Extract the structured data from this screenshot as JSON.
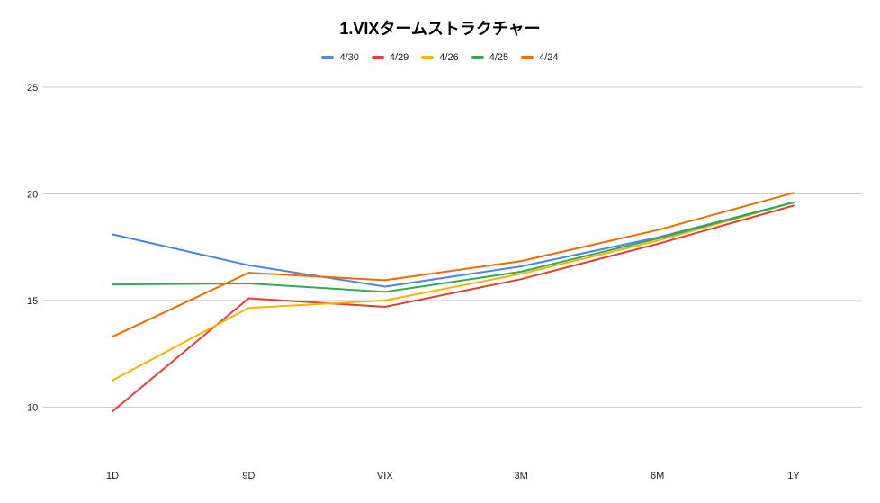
{
  "chart_data": {
    "type": "line",
    "title": "1.VIXタームストラクチャー",
    "categories": [
      "1D",
      "9D",
      "VIX",
      "3M",
      "6M",
      "1Y"
    ],
    "ylim": [
      8.2,
      25
    ],
    "yticks": [
      10,
      15,
      20,
      25
    ],
    "grid": true,
    "legend_position": "top",
    "series": [
      {
        "name": "4/30",
        "color": "#4a86e8",
        "values": [
          18.1,
          16.65,
          15.65,
          16.6,
          17.95,
          19.6
        ]
      },
      {
        "name": "4/29",
        "color": "#db4437",
        "values": [
          9.8,
          15.1,
          14.7,
          16.0,
          17.65,
          19.45
        ]
      },
      {
        "name": "4/26",
        "color": "#f4b400",
        "values": [
          11.25,
          14.65,
          15.0,
          16.25,
          17.8,
          19.6
        ]
      },
      {
        "name": "4/25",
        "color": "#34a853",
        "values": [
          15.75,
          15.8,
          15.4,
          16.35,
          17.9,
          19.6
        ]
      },
      {
        "name": "4/24",
        "color": "#ef6c00",
        "values": [
          13.3,
          16.3,
          15.95,
          16.85,
          18.3,
          20.05
        ]
      }
    ]
  }
}
